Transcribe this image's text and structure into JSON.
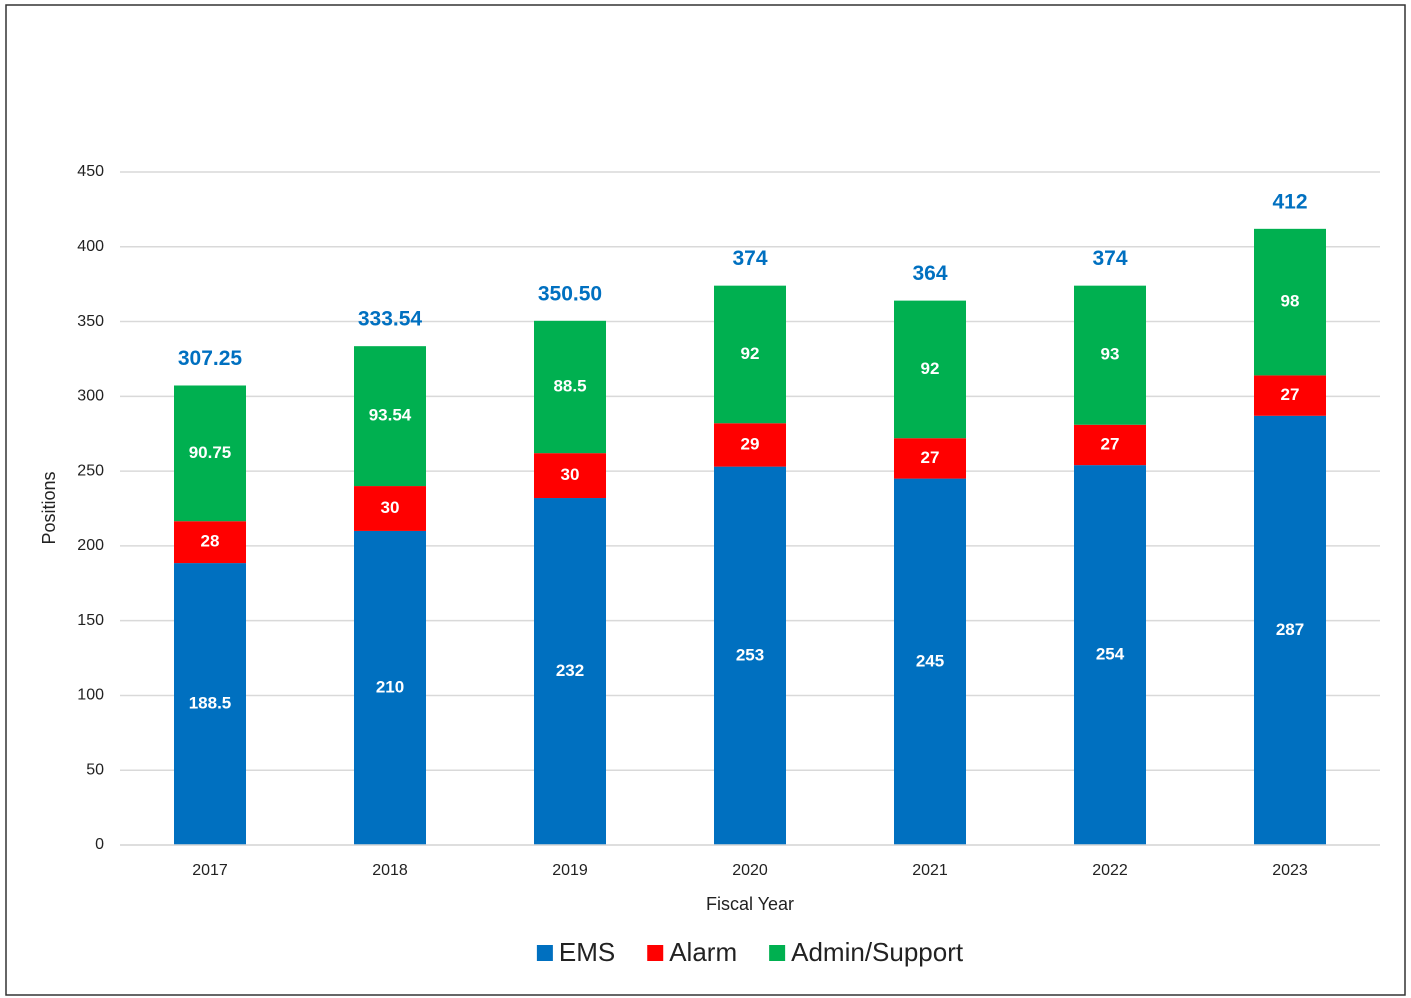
{
  "chart_data": {
    "type": "stacked_bar",
    "categories": [
      "2017",
      "2018",
      "2019",
      "2020",
      "2021",
      "2022",
      "2023"
    ],
    "series": [
      {
        "name": "EMS",
        "color": "#0070c0",
        "values": [
          188.5,
          210,
          232,
          253,
          245,
          254,
          287
        ]
      },
      {
        "name": "Alarm",
        "color": "#ff0000",
        "values": [
          28,
          30,
          30,
          29,
          27,
          27,
          27
        ]
      },
      {
        "name": "Admin/Support",
        "color": "#00b050",
        "values": [
          90.75,
          93.54,
          88.5,
          92,
          92,
          93,
          98
        ]
      }
    ],
    "totals": {
      "values": [
        307.25,
        333.54,
        350.5,
        374,
        364,
        374,
        412
      ],
      "value_labels": [
        "307.25",
        "333.54",
        "350.50",
        "374",
        "364",
        "374",
        "412"
      ],
      "color": "#0070c0"
    },
    "xlabel": "Fiscal Year",
    "ylabel": "Positions",
    "ylim": [
      0,
      450
    ],
    "yticks": [
      0,
      50,
      100,
      150,
      200,
      250,
      300,
      350,
      400,
      450
    ],
    "grid": true,
    "legend": "bottom"
  }
}
